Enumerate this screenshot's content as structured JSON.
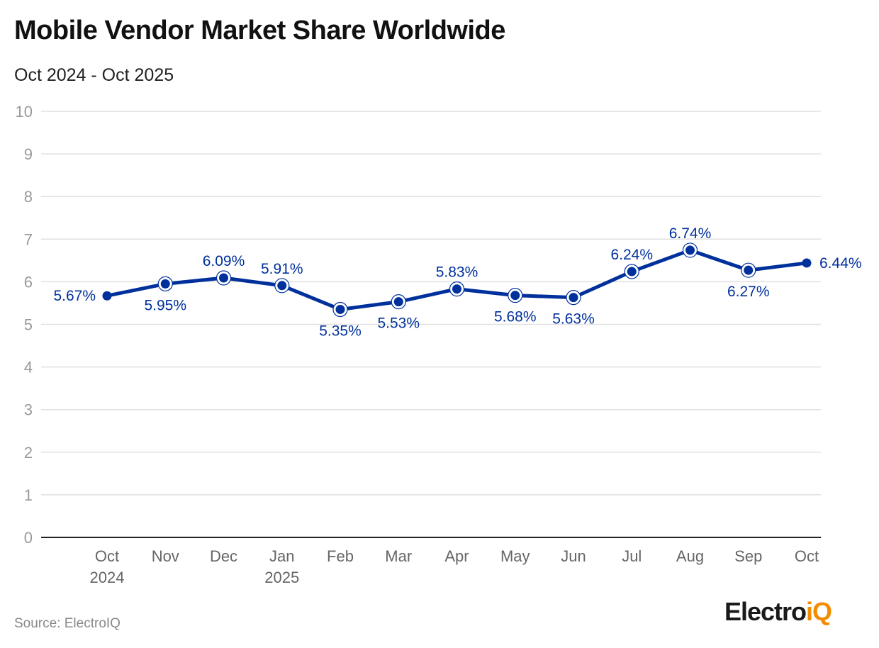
{
  "chart_data": {
    "type": "line",
    "title": "Mobile Vendor Market Share Worldwide",
    "subtitle": "Oct 2024 - Oct 2025",
    "categories": [
      [
        "Oct",
        "2024"
      ],
      [
        "Nov"
      ],
      [
        "Dec"
      ],
      [
        "Jan",
        "2025"
      ],
      [
        "Feb"
      ],
      [
        "Mar"
      ],
      [
        "Apr"
      ],
      [
        "May"
      ],
      [
        "Jun"
      ],
      [
        "Jul"
      ],
      [
        "Aug"
      ],
      [
        "Sep"
      ],
      [
        "Oct"
      ]
    ],
    "values": [
      5.67,
      5.95,
      6.09,
      5.91,
      5.35,
      5.53,
      5.83,
      5.68,
      5.63,
      6.24,
      6.74,
      6.27,
      6.44
    ],
    "data_labels": [
      "5.67%",
      "5.95%",
      "6.09%",
      "5.91%",
      "5.35%",
      "5.53%",
      "5.83%",
      "5.68%",
      "5.63%",
      "6.24%",
      "6.74%",
      "6.27%",
      "6.44%"
    ],
    "ylim": [
      0,
      10
    ],
    "yticks": [
      0,
      1,
      2,
      3,
      4,
      5,
      6,
      7,
      8,
      9,
      10
    ],
    "grid": true,
    "line_color": "#00309c",
    "source": "Source: ElectroIQ"
  },
  "logo": {
    "text_main": "Electro",
    "text_accent": "iQ",
    "accent_color": "#f28c00"
  }
}
